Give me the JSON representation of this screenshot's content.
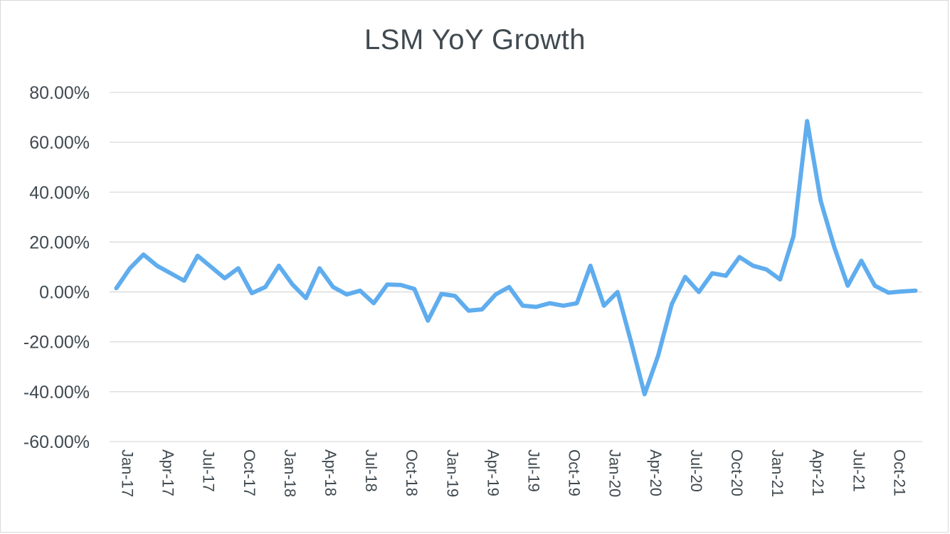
{
  "chart_data": {
    "type": "line",
    "title": "LSM YoY Growth",
    "xlabel": "",
    "ylabel": "",
    "ylim": [
      -60,
      80
    ],
    "y_ticks": [
      80,
      60,
      40,
      20,
      0,
      -20,
      -40,
      -60
    ],
    "y_tick_labels": [
      "80.00%",
      "60.00%",
      "40.00%",
      "20.00%",
      "0.00%",
      "-20.00%",
      "-40.00%",
      "-60.00%"
    ],
    "x_tick_labels": [
      "Jan-17",
      "Apr-17",
      "Jul-17",
      "Oct-17",
      "Jan-18",
      "Apr-18",
      "Jul-18",
      "Oct-18",
      "Jan-19",
      "Apr-19",
      "Jul-19",
      "Oct-19",
      "Jan-20",
      "Apr-20",
      "Jul-20",
      "Oct-20",
      "Jan-21",
      "Apr-21",
      "Jul-21",
      "Oct-21"
    ],
    "grid": true,
    "legend": "none",
    "line_color": "#5fadee",
    "categories": [
      "Jan-17",
      "Feb-17",
      "Mar-17",
      "Apr-17",
      "May-17",
      "Jun-17",
      "Jul-17",
      "Aug-17",
      "Sep-17",
      "Oct-17",
      "Nov-17",
      "Dec-17",
      "Jan-18",
      "Feb-18",
      "Mar-18",
      "Apr-18",
      "May-18",
      "Jun-18",
      "Jul-18",
      "Aug-18",
      "Sep-18",
      "Oct-18",
      "Nov-18",
      "Dec-18",
      "Jan-19",
      "Feb-19",
      "Mar-19",
      "Apr-19",
      "May-19",
      "Jun-19",
      "Jul-19",
      "Aug-19",
      "Sep-19",
      "Oct-19",
      "Nov-19",
      "Dec-19",
      "Jan-20",
      "Feb-20",
      "Mar-20",
      "Apr-20",
      "May-20",
      "Jun-20",
      "Jul-20",
      "Aug-20",
      "Sep-20",
      "Oct-20",
      "Nov-20",
      "Dec-20",
      "Jan-21",
      "Feb-21",
      "Mar-21",
      "Apr-21",
      "May-21",
      "Jun-21",
      "Jul-21",
      "Aug-21",
      "Sep-21",
      "Oct-21",
      "Nov-21",
      "Dec-21"
    ],
    "series": [
      {
        "values": [
          1.5,
          9.5,
          15,
          10.5,
          7.5,
          4.5,
          14.5,
          10,
          5.5,
          9.5,
          -0.5,
          2,
          10.5,
          3,
          -2.5,
          9.5,
          2,
          -1,
          0.5,
          -4.5,
          3,
          2.8,
          1.2,
          -11.5,
          -0.8,
          -1.6,
          -7.5,
          -7,
          -1,
          2,
          -5.5,
          -6,
          -4.5,
          -5.5,
          -4.5,
          10.5,
          -5.5,
          0,
          -20,
          -41,
          -25.5,
          -5,
          6,
          0,
          7.5,
          6.5,
          14,
          10.5,
          9,
          5,
          22.5,
          68.5,
          36.5,
          18,
          2.5,
          12.5,
          2.5,
          -0.3,
          0.2,
          0.5
        ]
      }
    ]
  }
}
